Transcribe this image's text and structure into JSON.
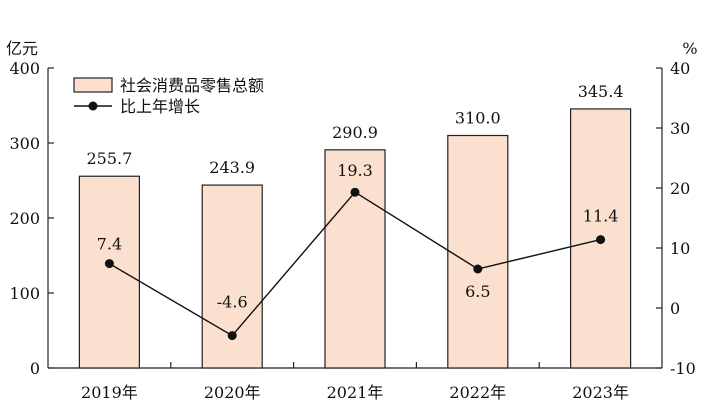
{
  "chart_data": {
    "type": "bar",
    "categories": [
      "2019年",
      "2020年",
      "2021年",
      "2022年",
      "2023年"
    ],
    "series": [
      {
        "name": "社会消费品零售总额",
        "kind": "bar",
        "axis": "left",
        "values": [
          255.7,
          243.9,
          290.9,
          310.0,
          345.4
        ],
        "labels": [
          "255.7",
          "243.9",
          "290.9",
          "310.0",
          "345.4"
        ],
        "fill": "#fbe0d0",
        "stroke": "#222222"
      },
      {
        "name": "比上年增长",
        "kind": "line",
        "axis": "right",
        "values": [
          7.4,
          -4.6,
          19.3,
          6.5,
          11.4
        ],
        "labels": [
          "7.4",
          "-4.6",
          "19.3",
          "6.5",
          "11.4"
        ],
        "color": "#111111"
      }
    ],
    "y_left": {
      "unit": "亿元",
      "ylim": [
        0,
        400
      ],
      "ticks": [
        "0",
        "100",
        "200",
        "300",
        "400"
      ]
    },
    "y_right": {
      "unit": "%",
      "ylim": [
        -10,
        40
      ],
      "ticks": [
        "-10",
        "0",
        "10",
        "20",
        "30",
        "40"
      ]
    },
    "grid": false,
    "legend": "top-left"
  }
}
